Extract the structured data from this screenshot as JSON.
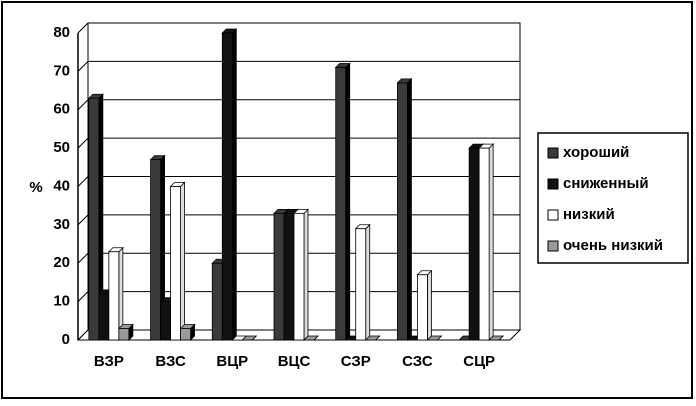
{
  "chart_data": {
    "type": "bar",
    "y_label": "%",
    "categories": [
      "ВЗР",
      "ВЗС",
      "ВЦР",
      "ВЦС",
      "СЗР",
      "СЗС",
      "СЦР"
    ],
    "series": [
      {
        "name": "хороший",
        "color": "#3a3a3a",
        "values": [
          63,
          47,
          20,
          33,
          71,
          67,
          0
        ]
      },
      {
        "name": "сниженный",
        "color": "#111111",
        "values": [
          12,
          10,
          80,
          33,
          0,
          0,
          50
        ]
      },
      {
        "name": "низкий",
        "color": "#ffffff",
        "values": [
          23,
          40,
          0,
          33,
          29,
          17,
          50
        ]
      },
      {
        "name": "очень низкий",
        "color": "#9a9a9a",
        "values": [
          3,
          3,
          0,
          0,
          0,
          0,
          0
        ]
      }
    ],
    "ylim": [
      0,
      80
    ],
    "yticks": [
      0,
      10,
      20,
      30,
      40,
      50,
      60,
      70,
      80
    ],
    "grid": true,
    "legend": "right"
  }
}
